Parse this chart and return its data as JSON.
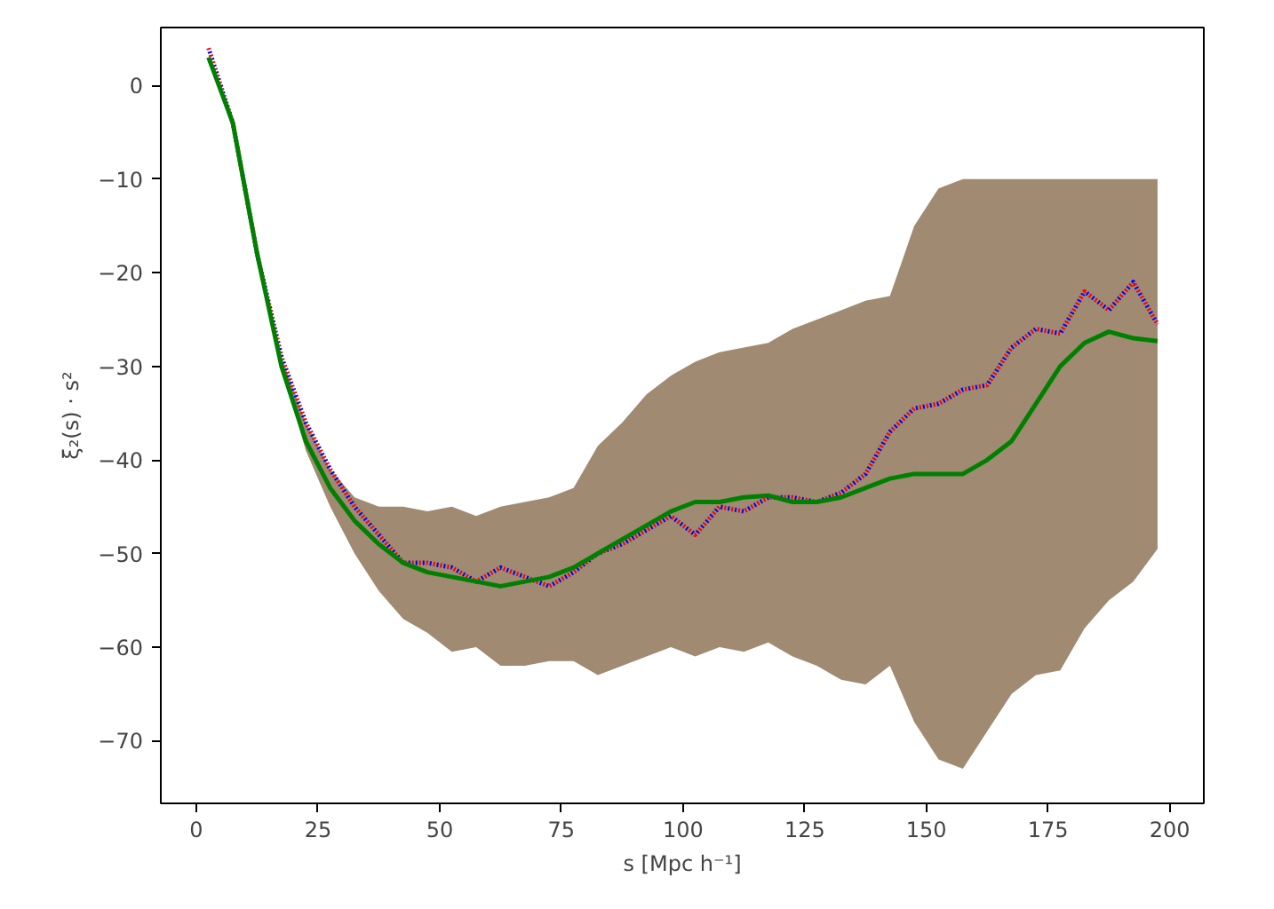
{
  "chart_data": {
    "type": "line",
    "xlabel": "s [Mpc h⁻¹]",
    "ylabel": "ξ₂(s) · s²",
    "x": [
      2.5,
      7.5,
      12.5,
      17.5,
      22.5,
      27.5,
      32.5,
      37.5,
      42.5,
      47.5,
      52.5,
      57.5,
      62.5,
      67.5,
      72.5,
      77.5,
      82.5,
      87.5,
      92.5,
      97.5,
      102.5,
      107.5,
      112.5,
      117.5,
      122.5,
      127.5,
      132.5,
      137.5,
      142.5,
      147.5,
      152.5,
      157.5,
      162.5,
      167.5,
      172.5,
      177.5,
      182.5,
      187.5,
      192.5,
      197.5
    ],
    "xlim": [
      -7.3,
      207
    ],
    "ylim": [
      -76.7,
      6.2
    ],
    "xticks": [
      0,
      25,
      50,
      75,
      100,
      125,
      150,
      175,
      200
    ],
    "yticks": [
      -70,
      -60,
      -50,
      -40,
      -30,
      -20,
      -10,
      0
    ],
    "grid": false,
    "series": [
      {
        "color": "#ff0000",
        "line_style": "dotted",
        "values": [
          4,
          -4,
          -18,
          -29,
          -36,
          -41,
          -45,
          -48,
          -51,
          -51,
          -51.5,
          -53,
          -51.5,
          -52.5,
          -53.5,
          -52,
          -50,
          -49,
          -47.5,
          -46,
          -48,
          -45,
          -45.5,
          -44,
          -44,
          -44.5,
          -43.5,
          -41.5,
          -37,
          -34.5,
          -34,
          -32.5,
          -32,
          -28,
          -26,
          -26.5,
          -22,
          -24,
          -21,
          -25.5
        ]
      },
      {
        "color": "#0000ff",
        "line_style": "dotted",
        "values": [
          4,
          -4,
          -18,
          -29,
          -36,
          -41,
          -45,
          -48,
          -51,
          -51,
          -51.5,
          -53,
          -51.5,
          -52.5,
          -53.5,
          -52,
          -50,
          -49,
          -47.5,
          -46,
          -48,
          -45,
          -45.5,
          -44,
          -44,
          -44.5,
          -43.5,
          -41.5,
          -37,
          -34.5,
          -34,
          -32.5,
          -32,
          -28,
          -26,
          -26.5,
          -22,
          -24,
          -21,
          -25.5
        ]
      },
      {
        "color": "#008000",
        "line_style": "solid",
        "values": [
          3,
          -4,
          -18,
          -30,
          -38,
          -43,
          -46.5,
          -49,
          -51,
          -52,
          -52.5,
          -53,
          -53.5,
          -53,
          -52.5,
          -51.5,
          -50,
          -48.5,
          -47,
          -45.5,
          -44.5,
          -44.5,
          -44,
          -43.8,
          -44.5,
          -44.5,
          -44,
          -43,
          -42,
          -41.5,
          -41.5,
          -41.5,
          -40,
          -38,
          -34,
          -30,
          -27.5,
          -26.3,
          -27,
          -27.3
        ],
        "lower": [
          4,
          -4,
          -18,
          -30,
          -39,
          -45,
          -50,
          -54,
          -57,
          -58.5,
          -60.5,
          -60,
          -62,
          -62,
          -61.5,
          -61.5,
          -63,
          -62,
          -61,
          -60,
          -61,
          -60,
          -60.5,
          -59.5,
          -61,
          -62,
          -63.5,
          -64,
          -62,
          -68,
          -72,
          -73,
          -69,
          -65,
          -63,
          -62.5,
          -58,
          -55,
          -53,
          -49.5
        ],
        "upper": [
          4,
          -4,
          -18,
          -29,
          -36,
          -41,
          -44,
          -45,
          -45,
          -45.5,
          -45,
          -46,
          -45,
          -44.5,
          -44,
          -43,
          -38.5,
          -36,
          -33,
          -31,
          -29.5,
          -28.5,
          -28,
          -27.5,
          -26,
          -25,
          -24,
          -23,
          -22.5,
          -15,
          -11,
          -10,
          -10,
          -10,
          -10,
          -10,
          -10,
          -10,
          -10,
          -10
        ]
      }
    ]
  }
}
